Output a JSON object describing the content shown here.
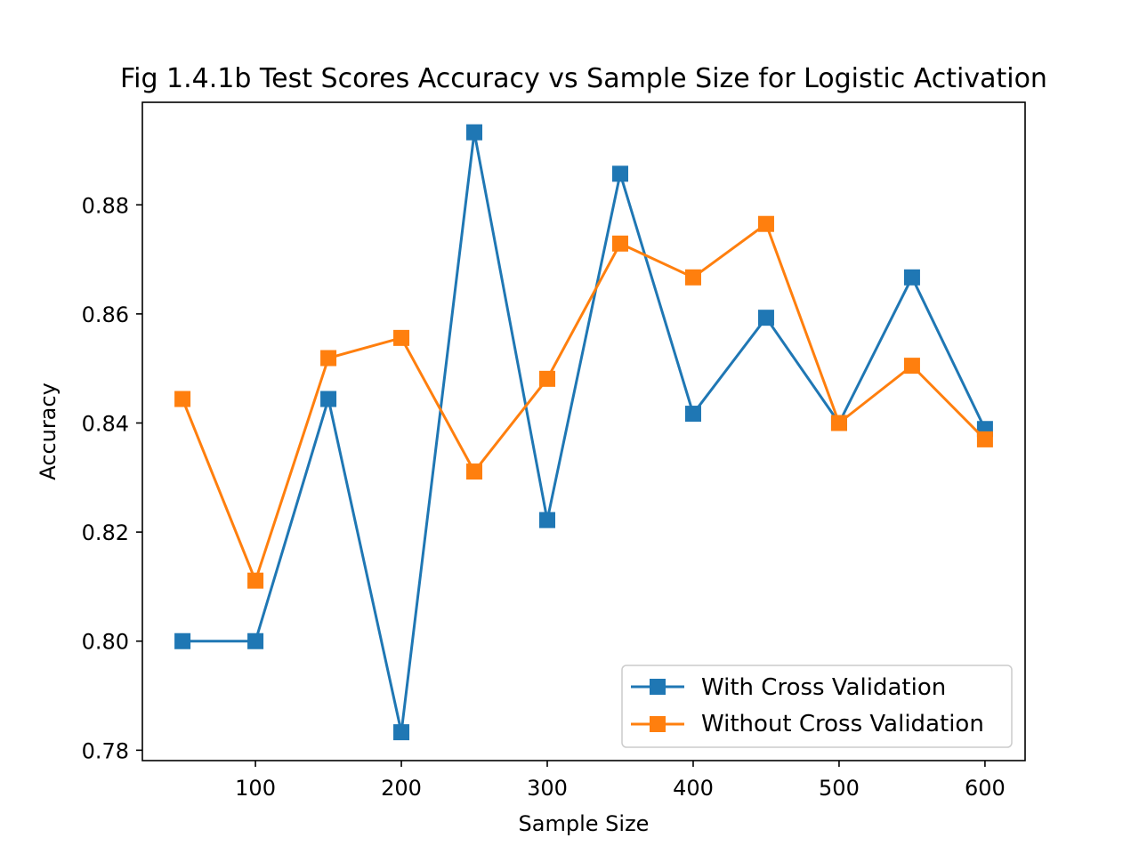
{
  "chart_data": {
    "type": "line",
    "title": "Fig 1.4.1b Test Scores Accuracy vs Sample Size for Logistic Activation",
    "xlabel": "Sample Size",
    "ylabel": "Accuracy",
    "x": [
      50,
      100,
      150,
      200,
      250,
      300,
      350,
      400,
      450,
      500,
      550,
      600
    ],
    "xlim": [
      22.5,
      627.5
    ],
    "ylim": [
      0.7781,
      0.8988
    ],
    "xticks": [
      100,
      200,
      300,
      400,
      500,
      600
    ],
    "yticks": [
      0.78,
      0.8,
      0.82,
      0.84,
      0.86,
      0.88
    ],
    "xtick_labels": [
      "100",
      "200",
      "300",
      "400",
      "500",
      "600"
    ],
    "ytick_labels": [
      "0.78",
      "0.80",
      "0.82",
      "0.84",
      "0.86",
      "0.88"
    ],
    "grid": false,
    "legend_position": "lower right",
    "marker": "square",
    "series": [
      {
        "name": "With Cross Validation",
        "color": "#1f77b4",
        "values": [
          0.8,
          0.8,
          0.8444,
          0.7833,
          0.8933,
          0.8222,
          0.8857,
          0.8417,
          0.8593,
          0.84,
          0.8667,
          0.8389
        ]
      },
      {
        "name": "Without Cross Validation",
        "color": "#ff7f0e",
        "values": [
          0.8444,
          0.8111,
          0.8519,
          0.8556,
          0.8311,
          0.8481,
          0.8729,
          0.8667,
          0.8765,
          0.84,
          0.8505,
          0.837
        ]
      }
    ]
  }
}
